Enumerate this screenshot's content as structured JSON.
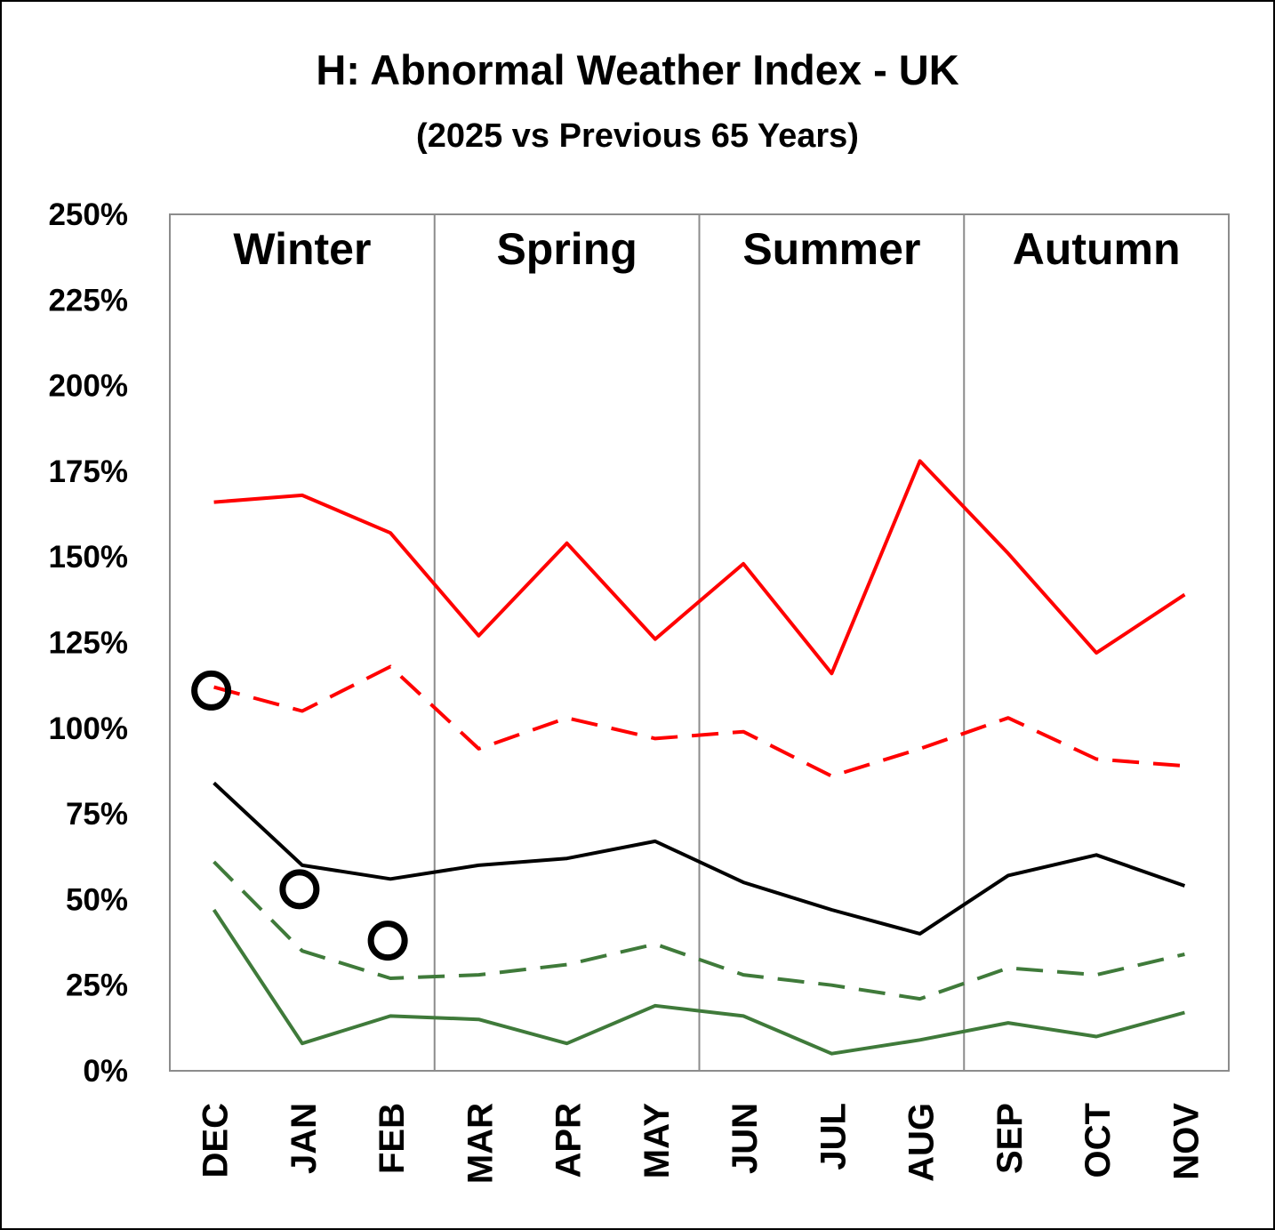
{
  "chart_data": {
    "type": "line",
    "title": "H: Abnormal Weather Index - UK",
    "subtitle": "(2025 vs Previous 65 Years)",
    "categories": [
      "DEC",
      "JAN",
      "FEB",
      "MAR",
      "APR",
      "MAY",
      "JUN",
      "JUL",
      "AUG",
      "SEP",
      "OCT",
      "NOV"
    ],
    "y_ticks": [
      "0%",
      "25%",
      "50%",
      "75%",
      "100%",
      "125%",
      "150%",
      "175%",
      "200%",
      "225%",
      "250%"
    ],
    "ylim": [
      0,
      250
    ],
    "y_unit": "%",
    "seasons": [
      "Winter",
      "Spring",
      "Summer",
      "Autumn"
    ],
    "grid": false,
    "legend": "none",
    "series": [
      {
        "style": "solid",
        "color": "#ff0000",
        "values": [
          166,
          168,
          157,
          127,
          154,
          126,
          148,
          116,
          178,
          151,
          122,
          139
        ]
      },
      {
        "style": "dashed",
        "color": "#ff0000",
        "values": [
          112,
          105,
          118,
          94,
          103,
          97,
          99,
          86,
          94,
          103,
          91,
          89
        ]
      },
      {
        "style": "solid",
        "color": "#000000",
        "values": [
          84,
          60,
          56,
          60,
          62,
          67,
          55,
          47,
          40,
          57,
          63,
          54
        ]
      },
      {
        "style": "dashed",
        "color": "#3f7a3a",
        "values": [
          61,
          35,
          27,
          28,
          31,
          37,
          28,
          25,
          21,
          30,
          28,
          34
        ]
      },
      {
        "style": "solid",
        "color": "#3f7a3a",
        "values": [
          47,
          8,
          16,
          15,
          8,
          19,
          16,
          5,
          9,
          14,
          10,
          17
        ]
      }
    ],
    "markers": {
      "style": "open-circle",
      "color": "#000000",
      "values": [
        111,
        53,
        38
      ]
    }
  }
}
